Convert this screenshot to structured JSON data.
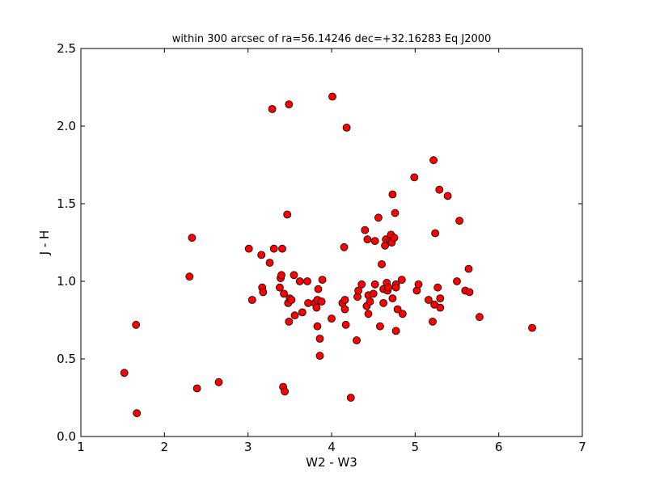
{
  "chart_data": {
    "type": "scatter",
    "title": "within 300 arcsec of  ra=56.14246 dec=+32.16283 Eq J2000",
    "xlabel": "W2 - W3",
    "ylabel": "J - H",
    "xlim": [
      1,
      7
    ],
    "ylim": [
      0,
      2.5
    ],
    "x_ticks": [
      "1",
      "2",
      "3",
      "4",
      "5",
      "6",
      "7"
    ],
    "y_ticks": [
      "0.0",
      "0.5",
      "1.0",
      "1.5",
      "2.0",
      "2.5"
    ],
    "grid": false,
    "marker_color": "#ff0000",
    "marker_edge": "#000000",
    "points": [
      [
        1.52,
        0.41
      ],
      [
        1.66,
        0.72
      ],
      [
        1.67,
        0.15
      ],
      [
        2.3,
        1.03
      ],
      [
        2.33,
        1.28
      ],
      [
        2.39,
        0.31
      ],
      [
        2.65,
        0.35
      ],
      [
        3.01,
        1.21
      ],
      [
        3.05,
        0.88
      ],
      [
        3.16,
        1.17
      ],
      [
        3.17,
        0.96
      ],
      [
        3.18,
        0.93
      ],
      [
        3.26,
        1.12
      ],
      [
        3.29,
        2.11
      ],
      [
        3.31,
        1.21
      ],
      [
        3.38,
        0.96
      ],
      [
        3.39,
        1.02
      ],
      [
        3.4,
        1.04
      ],
      [
        3.41,
        1.21
      ],
      [
        3.42,
        0.32
      ],
      [
        3.43,
        0.92
      ],
      [
        3.44,
        0.29
      ],
      [
        3.47,
        1.43
      ],
      [
        3.48,
        0.86
      ],
      [
        3.49,
        0.74
      ],
      [
        3.49,
        2.14
      ],
      [
        3.5,
        0.89
      ],
      [
        3.52,
        0.88
      ],
      [
        3.55,
        1.04
      ],
      [
        3.56,
        0.78
      ],
      [
        3.62,
        1.0
      ],
      [
        3.65,
        0.8
      ],
      [
        3.71,
        1.0
      ],
      [
        3.72,
        0.86
      ],
      [
        3.8,
        0.86
      ],
      [
        3.82,
        0.83
      ],
      [
        3.83,
        0.88
      ],
      [
        3.83,
        0.71
      ],
      [
        3.84,
        0.95
      ],
      [
        3.86,
        0.52
      ],
      [
        3.86,
        0.63
      ],
      [
        3.88,
        0.87
      ],
      [
        3.89,
        1.01
      ],
      [
        4.0,
        0.76
      ],
      [
        4.01,
        2.19
      ],
      [
        4.13,
        0.86
      ],
      [
        4.15,
        1.22
      ],
      [
        4.16,
        0.88
      ],
      [
        4.16,
        0.82
      ],
      [
        4.17,
        0.72
      ],
      [
        4.18,
        1.99
      ],
      [
        4.23,
        0.25
      ],
      [
        4.3,
        0.62
      ],
      [
        4.31,
        0.9
      ],
      [
        4.32,
        0.94
      ],
      [
        4.36,
        0.98
      ],
      [
        4.4,
        1.33
      ],
      [
        4.42,
        0.84
      ],
      [
        4.43,
        1.27
      ],
      [
        4.44,
        0.79
      ],
      [
        4.44,
        0.91
      ],
      [
        4.46,
        0.87
      ],
      [
        4.5,
        0.92
      ],
      [
        4.52,
        1.26
      ],
      [
        4.52,
        0.98
      ],
      [
        4.56,
        1.41
      ],
      [
        4.58,
        0.71
      ],
      [
        4.6,
        1.11
      ],
      [
        4.62,
        0.86
      ],
      [
        4.62,
        0.95
      ],
      [
        4.64,
        1.23
      ],
      [
        4.65,
        1.27
      ],
      [
        4.66,
        0.99
      ],
      [
        4.67,
        0.94
      ],
      [
        4.68,
        0.96
      ],
      [
        4.7,
        1.26
      ],
      [
        4.71,
        1.3
      ],
      [
        4.72,
        1.25
      ],
      [
        4.73,
        1.56
      ],
      [
        4.73,
        0.89
      ],
      [
        4.75,
        1.28
      ],
      [
        4.76,
        1.44
      ],
      [
        4.77,
        0.68
      ],
      [
        4.77,
        0.98
      ],
      [
        4.77,
        0.96
      ],
      [
        4.79,
        0.82
      ],
      [
        4.84,
        1.01
      ],
      [
        4.85,
        0.79
      ],
      [
        4.99,
        1.67
      ],
      [
        5.02,
        0.94
      ],
      [
        5.04,
        0.98
      ],
      [
        5.16,
        0.88
      ],
      [
        5.21,
        0.74
      ],
      [
        5.22,
        1.78
      ],
      [
        5.23,
        0.85
      ],
      [
        5.24,
        1.31
      ],
      [
        5.27,
        0.96
      ],
      [
        5.29,
        1.59
      ],
      [
        5.3,
        0.89
      ],
      [
        5.3,
        0.83
      ],
      [
        5.39,
        1.55
      ],
      [
        5.5,
        1.0
      ],
      [
        5.53,
        1.39
      ],
      [
        5.6,
        0.94
      ],
      [
        5.64,
        1.08
      ],
      [
        5.65,
        0.93
      ],
      [
        5.77,
        0.77
      ],
      [
        6.4,
        0.7
      ]
    ]
  }
}
